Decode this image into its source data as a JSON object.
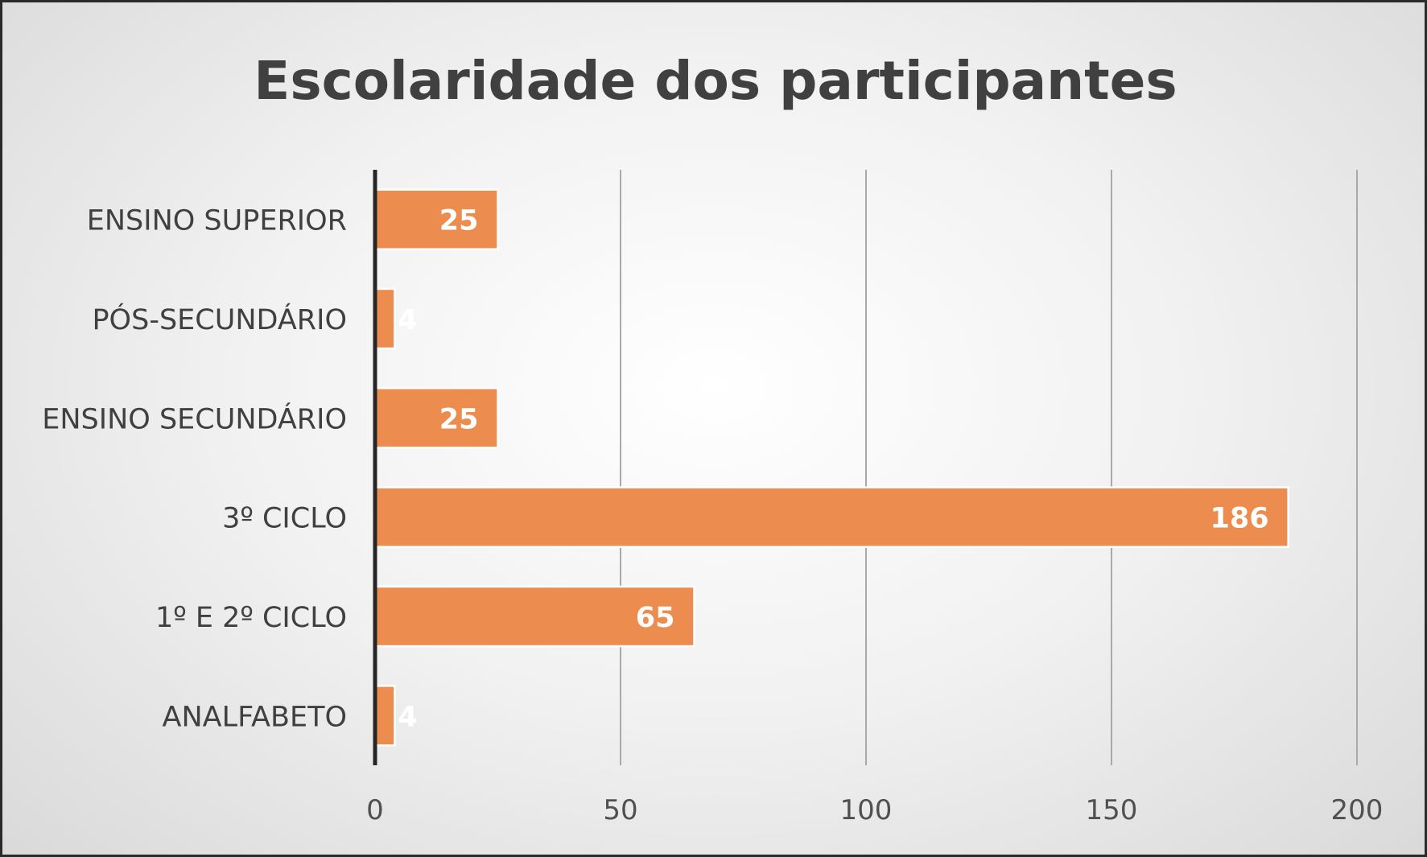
{
  "chart_data": {
    "type": "bar",
    "orientation": "horizontal",
    "title": "Escolaridade dos participantes",
    "categories": [
      "ENSINO SUPERIOR",
      "PÓS-SECUNDÁRIO",
      "ENSINO SECUNDÁRIO",
      "3º CICLO",
      "1º E 2º CICLO",
      "ANALFABETO"
    ],
    "values": [
      25,
      4,
      25,
      186,
      65,
      4
    ],
    "x_ticks": [
      "0",
      "50",
      "100",
      "150",
      "200"
    ],
    "xlim": [
      0,
      200
    ],
    "grid": true,
    "legend": "none",
    "bar_color": "#ec8c4e"
  }
}
